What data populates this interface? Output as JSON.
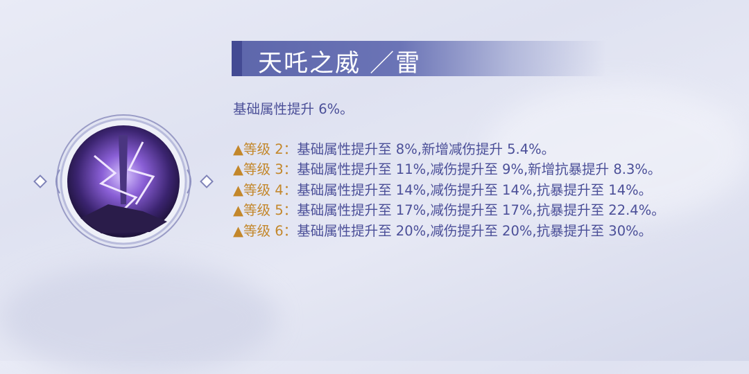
{
  "skill": {
    "title": "天吒之威 ／雷",
    "icon": "lightning-sword-skill-icon",
    "base": "基础属性提升 6%。",
    "levels": [
      {
        "label": "▲等级 2：",
        "text": "基础属性提升至 8%,新增减伤提升 5.4%。"
      },
      {
        "label": "▲等级 3：",
        "text": "基础属性提升至 11%,减伤提升至 9%,新增抗暴提升 8.3%。"
      },
      {
        "label": "▲等级 4：",
        "text": "基础属性提升至 14%,减伤提升至 14%,抗暴提升至 14%。"
      },
      {
        "label": "▲等级 5：",
        "text": "基础属性提升至 17%,减伤提升至 17%,抗暴提升至 22.4%。"
      },
      {
        "label": "▲等级 6：",
        "text": "基础属性提升至 20%,减伤提升至 20%,抗暴提升至 30%。"
      }
    ]
  },
  "colors": {
    "title_bar": "#5d66ab",
    "text": "#4b4f98",
    "level_label": "#c3872b"
  }
}
